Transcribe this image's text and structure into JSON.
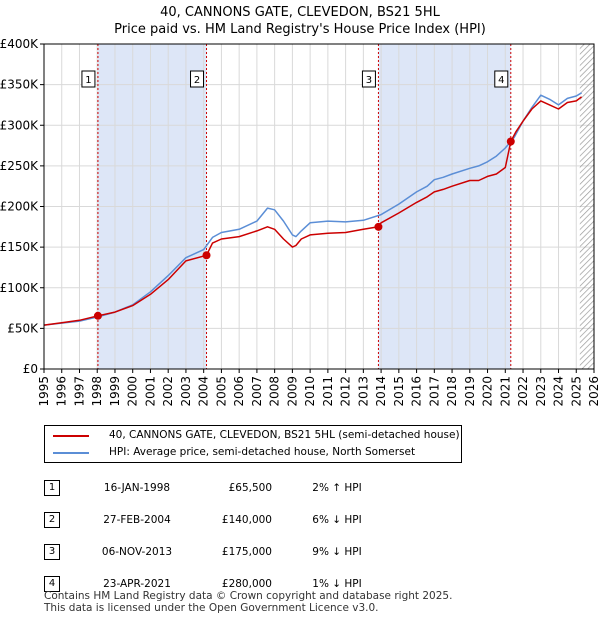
{
  "title_line1": "40, CANNONS GATE, CLEVEDON, BS21 5HL",
  "title_line2": "Price paid vs. HM Land Registry's House Price Index (HPI)",
  "colors": {
    "red": "#cc0000",
    "blue": "#5b8ed6",
    "shade": "#dde6f7",
    "vline": "#cc0000"
  },
  "legend": {
    "red_label": "40, CANNONS GATE, CLEVEDON, BS21 5HL (semi-detached house)",
    "blue_label": "HPI: Average price, semi-detached house, North Somerset"
  },
  "sales": [
    {
      "num": "1",
      "date": "16-JAN-1998",
      "price": "£65,500",
      "hpi": "2% ↑ HPI"
    },
    {
      "num": "2",
      "date": "27-FEB-2004",
      "price": "£140,000",
      "hpi": "6% ↓ HPI"
    },
    {
      "num": "3",
      "date": "06-NOV-2013",
      "price": "£175,000",
      "hpi": "9% ↓ HPI"
    },
    {
      "num": "4",
      "date": "23-APR-2021",
      "price": "£280,000",
      "hpi": "1% ↓ HPI"
    }
  ],
  "footer_line1": "Contains HM Land Registry data © Crown copyright and database right 2025.",
  "footer_line2": "This data is licensed under the Open Government Licence v3.0.",
  "chart_data": {
    "type": "line",
    "title": "Price paid vs. HM Land Registry's House Price Index (HPI)",
    "xlim": [
      1995,
      2026
    ],
    "ylim": [
      0,
      400000
    ],
    "x_ticks": [
      1995,
      1996,
      1997,
      1998,
      1999,
      2000,
      2001,
      2002,
      2003,
      2004,
      2005,
      2006,
      2007,
      2008,
      2009,
      2010,
      2011,
      2012,
      2013,
      2014,
      2015,
      2016,
      2017,
      2018,
      2019,
      2020,
      2021,
      2022,
      2023,
      2024,
      2025,
      2026
    ],
    "y_ticks": [
      0,
      50000,
      100000,
      150000,
      200000,
      250000,
      300000,
      350000,
      400000
    ],
    "y_tick_labels": [
      "£0",
      "£50K",
      "£100K",
      "£150K",
      "£200K",
      "£250K",
      "£300K",
      "£350K",
      "£400K"
    ],
    "grid": true,
    "sale_points": [
      {
        "label": "1",
        "x": 1998.04,
        "y": 65500
      },
      {
        "label": "2",
        "x": 2004.16,
        "y": 140000
      },
      {
        "label": "3",
        "x": 2013.85,
        "y": 175000
      },
      {
        "label": "4",
        "x": 2021.31,
        "y": 280000
      }
    ],
    "shaded_ranges": [
      [
        1998.04,
        2004.16
      ],
      [
        2013.85,
        2021.31
      ]
    ],
    "future_hatch_from": 2025.2,
    "series": [
      {
        "name": "40, CANNONS GATE, CLEVEDON, BS21 5HL (semi-detached house)",
        "color": "#cc0000",
        "x": [
          1995,
          1996,
          1997,
          1998.04,
          1999,
          2000,
          2001,
          2002,
          2003,
          2004.16,
          2004.5,
          2005,
          2006,
          2007,
          2007.6,
          2008,
          2008.5,
          2009,
          2009.2,
          2009.5,
          2010,
          2011,
          2012,
          2013,
          2013.85,
          2014,
          2015,
          2016,
          2016.6,
          2017,
          2017.5,
          2018,
          2019,
          2019.5,
          2020,
          2020.5,
          2021.0,
          2021.31,
          2021.6,
          2022,
          2022.5,
          2023,
          2023.5,
          2024,
          2024.5,
          2025,
          2025.3
        ],
        "y": [
          54000,
          57000,
          60000,
          65500,
          70000,
          78000,
          92000,
          110000,
          133000,
          140000,
          155000,
          160000,
          163000,
          170000,
          175000,
          172000,
          160000,
          150000,
          152000,
          160000,
          165000,
          167000,
          168000,
          172000,
          175000,
          180000,
          192000,
          205000,
          212000,
          218000,
          221000,
          225000,
          232000,
          232000,
          237000,
          240000,
          248000,
          280000,
          292000,
          305000,
          320000,
          330000,
          325000,
          320000,
          328000,
          330000,
          335000
        ]
      },
      {
        "name": "HPI: Average price, semi-detached house, North Somerset",
        "color": "#5b8ed6",
        "x": [
          1995,
          1996,
          1997,
          1998,
          1999,
          2000,
          2001,
          2002,
          2003,
          2004,
          2004.5,
          2005,
          2006,
          2007,
          2007.6,
          2008,
          2008.5,
          2009,
          2009.2,
          2009.5,
          2010,
          2011,
          2012,
          2013,
          2014,
          2015,
          2016,
          2016.6,
          2017,
          2017.5,
          2018,
          2019,
          2019.5,
          2020,
          2020.5,
          2021,
          2021.5,
          2022,
          2022.5,
          2023,
          2023.5,
          2024,
          2024.5,
          2025,
          2025.3
        ],
        "y": [
          54000,
          56500,
          59000,
          64000,
          70000,
          79000,
          95000,
          115000,
          137000,
          147000,
          162000,
          168000,
          172000,
          182000,
          198000,
          196000,
          182000,
          165000,
          163000,
          170000,
          180000,
          182000,
          181000,
          183000,
          190000,
          203000,
          218000,
          225000,
          233000,
          236000,
          240000,
          247000,
          250000,
          255000,
          262000,
          272000,
          285000,
          305000,
          322000,
          337000,
          332000,
          325000,
          333000,
          336000,
          340000
        ]
      }
    ]
  }
}
